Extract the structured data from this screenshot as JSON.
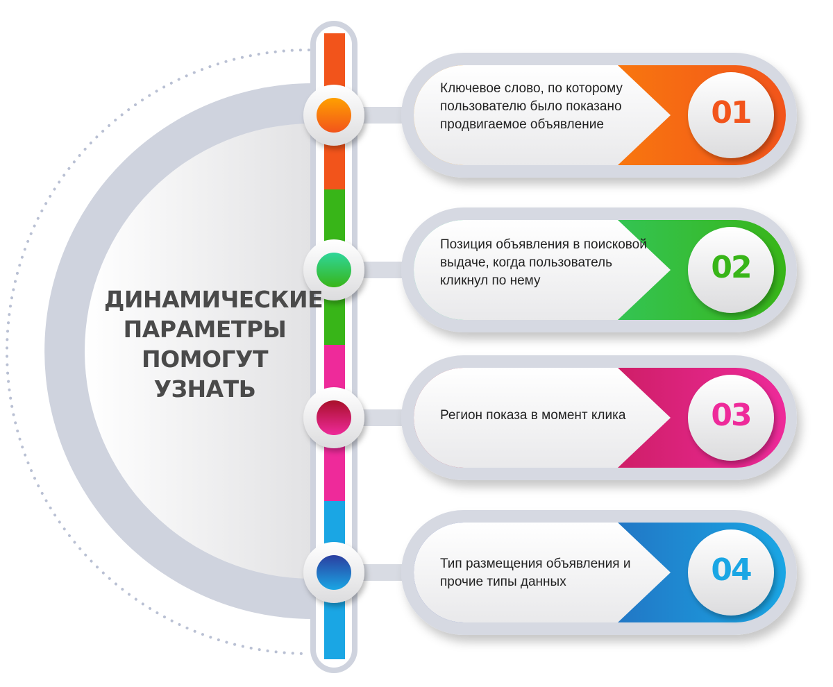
{
  "title": [
    "ДИНАМИЧЕСКИЕ",
    "ПАРАМЕТРЫ",
    "ПОМОГУТ",
    "УЗНАТЬ"
  ],
  "items": [
    {
      "number": "01",
      "text": "Ключевое слово, по которому пользователю было показано продвигаемое объявление",
      "color_light": "#ffa000",
      "color_dark": "#f2541b"
    },
    {
      "number": "02",
      "text": "Позиция объявления в поисковой выдаче, когда пользователь кликнул по нему",
      "color_light": "#2fd69a",
      "color_dark": "#38b518"
    },
    {
      "number": "03",
      "text": "Регион показа в момент клика",
      "color_light": "#a8102a",
      "color_dark": "#ee2a9a"
    },
    {
      "number": "04",
      "text": "Тип размещения объявления и прочие типы данных",
      "color_light": "#2b3ea0",
      "color_dark": "#1aa6e4"
    }
  ]
}
